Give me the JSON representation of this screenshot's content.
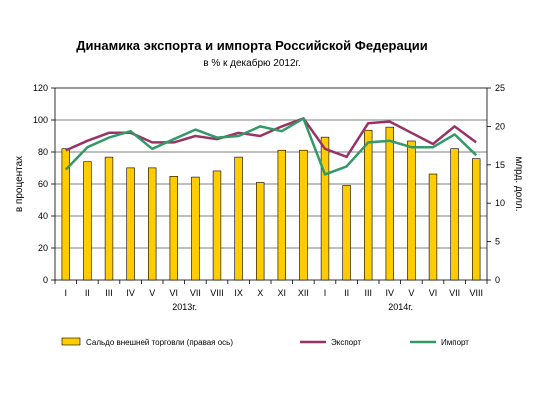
{
  "chart_data": {
    "type": "bar",
    "title": "Динамика экспорта и импорта Российской Федерации",
    "subtitle": "в % к декабрю 2012г.",
    "ylabel_left": "в процентах",
    "ylabel_right": "млрд. долл.",
    "ylim_left": [
      0,
      120
    ],
    "yticks_left": [
      "0",
      "20",
      "40",
      "60",
      "80",
      "100",
      "120"
    ],
    "ylim_right": [
      0,
      25
    ],
    "yticks_right": [
      "0",
      "5",
      "10",
      "15",
      "20",
      "25"
    ],
    "categories": [
      "I",
      "II",
      "III",
      "IV",
      "V",
      "VI",
      "VII",
      "VIII",
      "IX",
      "X",
      "XI",
      "XII",
      "I",
      "II",
      "III",
      "IV",
      "V",
      "VI",
      "VII",
      "VIII"
    ],
    "year_labels": [
      {
        "text": "2013г.",
        "from": 0,
        "to": 11
      },
      {
        "text": "2014г.",
        "from": 12,
        "to": 19
      }
    ],
    "series": [
      {
        "name": "Сальдо внешней торговли (правая ось)",
        "kind": "bar",
        "axis": "right",
        "color": "#FFCC00",
        "values": [
          17.1,
          15.4,
          16.0,
          14.6,
          14.6,
          13.5,
          13.4,
          14.2,
          16.0,
          12.7,
          16.9,
          16.9,
          18.6,
          12.3,
          19.5,
          19.9,
          18.1,
          13.8,
          17.1,
          15.8
        ]
      },
      {
        "name": "Экспорт",
        "kind": "line",
        "axis": "left",
        "color": "#993366",
        "values": [
          81,
          87,
          92,
          92,
          86,
          86,
          90,
          88,
          92,
          90,
          96,
          101,
          82,
          77,
          98,
          99,
          92,
          85,
          96,
          86
        ]
      },
      {
        "name": "Импорт",
        "kind": "line",
        "axis": "left",
        "color": "#339966",
        "values": [
          69,
          83,
          89,
          93,
          82,
          88,
          94,
          89,
          90,
          96,
          93,
          101,
          66,
          71,
          86,
          87,
          83,
          83,
          91,
          78
        ]
      }
    ],
    "grid": true,
    "legend": "bottom"
  }
}
